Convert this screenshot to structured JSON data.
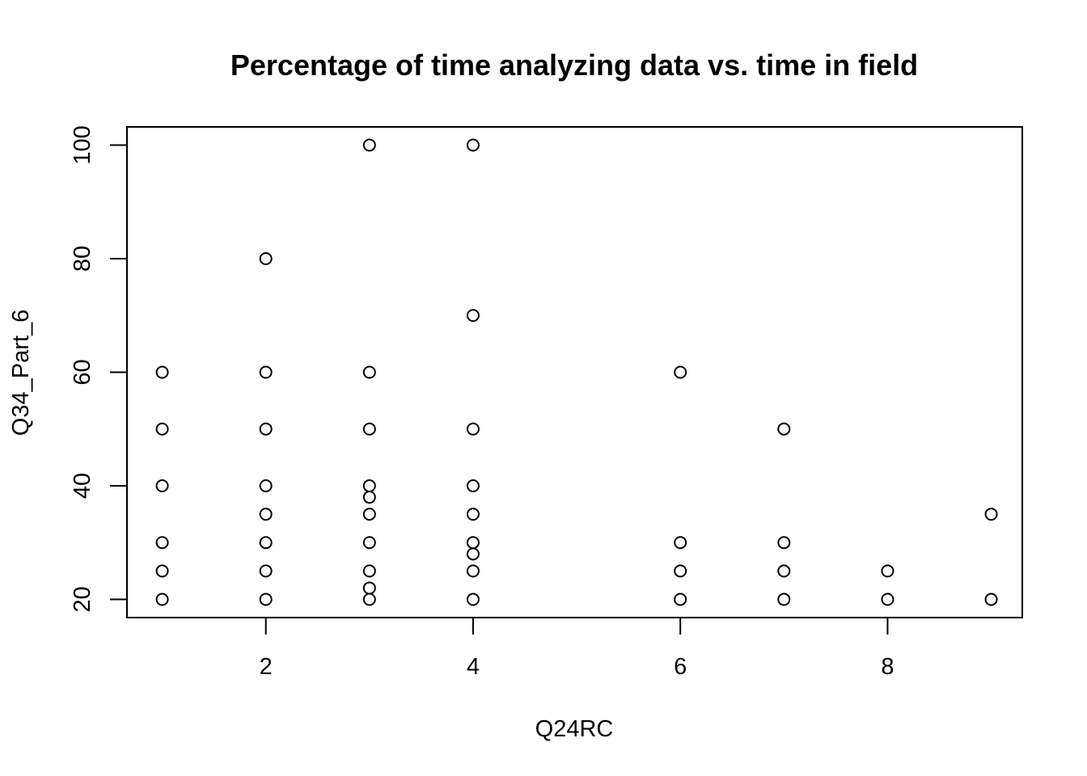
{
  "chart_data": {
    "type": "scatter",
    "title": "Percentage of time analyzing data vs. time in field",
    "xlabel": "Q24RC",
    "ylabel": "Q34_Part_6",
    "xlim": [
      0.66,
      9.3
    ],
    "ylim": [
      16.8,
      103.2
    ],
    "xticks": [
      2,
      4,
      6,
      8
    ],
    "yticks": [
      20,
      40,
      60,
      80,
      100
    ],
    "grid": false,
    "points": [
      {
        "x": 1,
        "y": 60
      },
      {
        "x": 1,
        "y": 50
      },
      {
        "x": 1,
        "y": 40
      },
      {
        "x": 1,
        "y": 30
      },
      {
        "x": 1,
        "y": 25
      },
      {
        "x": 1,
        "y": 20
      },
      {
        "x": 2,
        "y": 80
      },
      {
        "x": 2,
        "y": 60
      },
      {
        "x": 2,
        "y": 50
      },
      {
        "x": 2,
        "y": 40
      },
      {
        "x": 2,
        "y": 35
      },
      {
        "x": 2,
        "y": 30
      },
      {
        "x": 2,
        "y": 25
      },
      {
        "x": 2,
        "y": 20
      },
      {
        "x": 3,
        "y": 100
      },
      {
        "x": 3,
        "y": 60
      },
      {
        "x": 3,
        "y": 50
      },
      {
        "x": 3,
        "y": 40
      },
      {
        "x": 3,
        "y": 38
      },
      {
        "x": 3,
        "y": 35
      },
      {
        "x": 3,
        "y": 30
      },
      {
        "x": 3,
        "y": 25
      },
      {
        "x": 3,
        "y": 22
      },
      {
        "x": 3,
        "y": 20
      },
      {
        "x": 4,
        "y": 100
      },
      {
        "x": 4,
        "y": 70
      },
      {
        "x": 4,
        "y": 50
      },
      {
        "x": 4,
        "y": 40
      },
      {
        "x": 4,
        "y": 35
      },
      {
        "x": 4,
        "y": 30
      },
      {
        "x": 4,
        "y": 28
      },
      {
        "x": 4,
        "y": 25
      },
      {
        "x": 4,
        "y": 20
      },
      {
        "x": 6,
        "y": 60
      },
      {
        "x": 6,
        "y": 30
      },
      {
        "x": 6,
        "y": 25
      },
      {
        "x": 6,
        "y": 20
      },
      {
        "x": 7,
        "y": 50
      },
      {
        "x": 7,
        "y": 30
      },
      {
        "x": 7,
        "y": 25
      },
      {
        "x": 7,
        "y": 20
      },
      {
        "x": 8,
        "y": 25
      },
      {
        "x": 8,
        "y": 20
      },
      {
        "x": 9,
        "y": 35
      },
      {
        "x": 9,
        "y": 20
      }
    ]
  }
}
